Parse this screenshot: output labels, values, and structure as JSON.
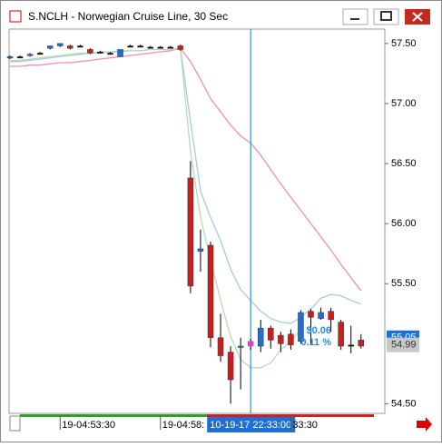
{
  "window": {
    "title": "S.NCLH - Norwegian Cruise Line, 30 Sec"
  },
  "chart_data": {
    "type": "candlestick",
    "categories": [
      null,
      null,
      null,
      null,
      null,
      "19-04:53:30",
      null,
      null,
      null,
      null,
      null,
      null,
      null,
      null,
      null,
      "19-04:58:",
      null,
      null,
      null,
      null,
      null,
      null,
      null,
      null,
      "10-19-17 22:33:00",
      null,
      null,
      null,
      "33:30",
      null,
      null,
      null,
      null,
      null,
      null,
      null
    ],
    "open": [
      57.38,
      57.39,
      57.4,
      57.42,
      57.46,
      57.48,
      57.48,
      57.48,
      57.45,
      57.43,
      57.42,
      57.39,
      57.48,
      57.48,
      57.47,
      57.47,
      57.47,
      57.48,
      56.38,
      55.77,
      55.82,
      55.05,
      54.93,
      54.97,
      54.98,
      54.98,
      55.13,
      55.07,
      55.08,
      55.02,
      55.27,
      55.21,
      55.27,
      55.18,
      54.99,
      55.03
    ],
    "high": [
      57.4,
      57.4,
      57.42,
      57.43,
      57.48,
      57.5,
      57.49,
      57.49,
      57.46,
      57.44,
      57.43,
      57.45,
      57.49,
      57.49,
      57.48,
      57.48,
      57.48,
      57.49,
      56.52,
      55.95,
      55.85,
      55.25,
      54.98,
      55.05,
      55.04,
      55.2,
      55.15,
      55.1,
      55.12,
      55.28,
      55.29,
      55.3,
      55.3,
      55.2,
      55.15,
      55.08
    ],
    "low": [
      57.37,
      57.38,
      57.39,
      57.41,
      57.45,
      57.47,
      57.45,
      57.47,
      57.41,
      57.42,
      57.41,
      57.39,
      57.47,
      57.47,
      57.46,
      57.46,
      57.46,
      57.44,
      55.42,
      55.6,
      54.97,
      54.85,
      54.5,
      54.62,
      54.95,
      54.93,
      54.96,
      54.93,
      54.95,
      55.0,
      55.0,
      55.2,
      55.1,
      54.95,
      54.92,
      54.96
    ],
    "close": [
      57.39,
      57.39,
      57.41,
      57.42,
      57.48,
      57.5,
      57.46,
      57.48,
      57.42,
      57.43,
      57.42,
      57.45,
      57.48,
      57.48,
      57.47,
      57.47,
      57.47,
      57.45,
      55.48,
      55.79,
      55.05,
      54.9,
      54.7,
      54.98,
      55.02,
      55.13,
      55.03,
      55.0,
      54.99,
      55.26,
      55.22,
      55.26,
      55.2,
      54.98,
      54.99,
      54.98
    ],
    "up_color": "#1e6fd8",
    "down_color": "#c81e1e",
    "flat_color": "#000000",
    "highlight_color": "#e040c0",
    "crosshair_category": "10-19-17 22:33:00",
    "series": [
      {
        "color": "#f28cb8",
        "values": [
          57.31,
          57.31,
          57.32,
          57.32,
          57.33,
          57.34,
          57.34,
          57.35,
          57.36,
          57.37,
          57.38,
          57.39,
          57.4,
          57.41,
          57.42,
          57.43,
          57.44,
          57.46,
          57.35,
          57.2,
          57.04,
          56.93,
          56.82,
          56.73,
          56.67,
          56.57,
          56.45,
          56.33,
          56.22,
          56.11,
          56.0,
          55.89,
          55.78,
          55.66,
          55.55,
          55.44
        ]
      },
      {
        "color": "#a8c8e8",
        "values": [
          57.35,
          57.35,
          57.36,
          57.37,
          57.38,
          57.39,
          57.4,
          57.41,
          57.42,
          57.42,
          57.43,
          57.43,
          57.44,
          57.44,
          57.45,
          57.45,
          57.45,
          57.46,
          56.85,
          56.27,
          56.05,
          55.86,
          55.62,
          55.45,
          55.36,
          55.27,
          55.21,
          55.18,
          55.17,
          55.22,
          55.29,
          55.38,
          55.41,
          55.4,
          55.36,
          55.33
        ]
      },
      {
        "color": "#b8dcb0",
        "values": [
          57.36,
          57.36,
          57.37,
          57.38,
          57.39,
          57.4,
          57.41,
          57.42,
          57.42,
          57.43,
          57.43,
          57.44,
          57.44,
          57.44,
          57.45,
          57.45,
          57.45,
          57.45,
          56.6,
          56.05,
          55.7,
          55.36,
          55.06,
          54.87,
          54.8,
          54.8,
          54.84,
          54.95,
          55.02,
          55.12,
          null,
          null,
          null,
          null,
          null,
          null
        ]
      }
    ],
    "ylim": [
      54.42,
      57.62
    ],
    "yticks": [
      {
        "value": 57.5,
        "label": "57.50"
      },
      {
        "value": 57.0,
        "label": "57.00"
      },
      {
        "value": 56.5,
        "label": "56.50"
      },
      {
        "value": 56.0,
        "label": "56.00"
      },
      {
        "value": 55.5,
        "label": "55.50"
      },
      {
        "value": 54.5,
        "label": "54.50"
      }
    ],
    "price_labels": [
      {
        "value": 55.05,
        "label": "55.05",
        "color": "#1e6fd8"
      },
      {
        "value": 54.99,
        "label": "54.99",
        "color": "#c8c8c8"
      }
    ],
    "annotations": [
      "$0.06",
      "0.11 %"
    ],
    "annotation_color": "#2a8ae0"
  }
}
